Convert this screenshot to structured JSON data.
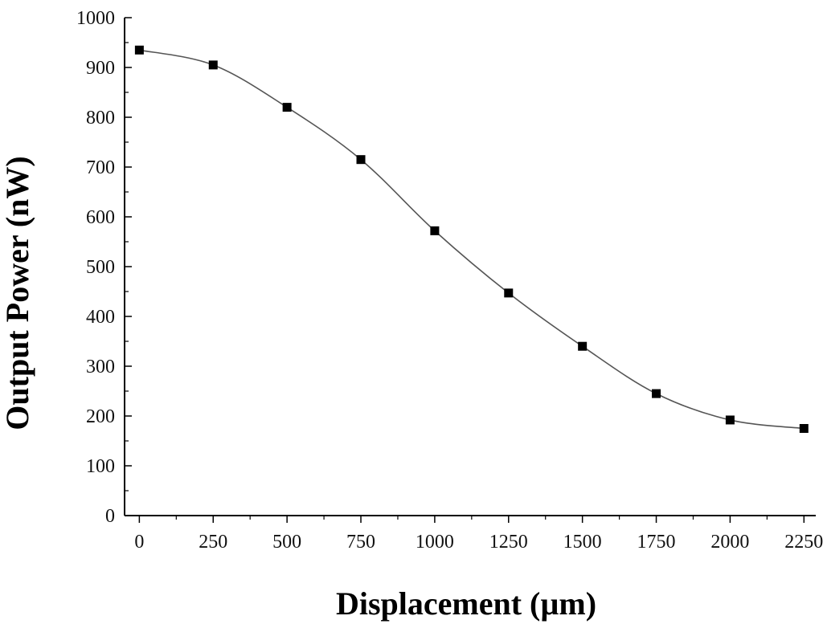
{
  "chart_data": {
    "type": "line",
    "title": "",
    "xlabel": "Displacement (µm)",
    "ylabel": "Output Power (nW)",
    "xlim": [
      -50,
      2290
    ],
    "ylim": [
      0,
      1000
    ],
    "x_ticks": [
      0,
      250,
      500,
      750,
      1000,
      1250,
      1500,
      1750,
      2000,
      2250
    ],
    "y_ticks": [
      0,
      100,
      200,
      300,
      400,
      500,
      600,
      700,
      800,
      900,
      1000
    ],
    "grid": false,
    "legend": "none",
    "marker": "square",
    "colors": {
      "line": "#555555",
      "marker": "#000000",
      "axis": "#000000"
    },
    "series": [
      {
        "x": [
          0,
          250,
          500,
          750,
          1000,
          1250,
          1500,
          1750,
          2000,
          2250
        ],
        "y": [
          935,
          905,
          820,
          715,
          572,
          447,
          340,
          245,
          192,
          175
        ]
      }
    ]
  }
}
